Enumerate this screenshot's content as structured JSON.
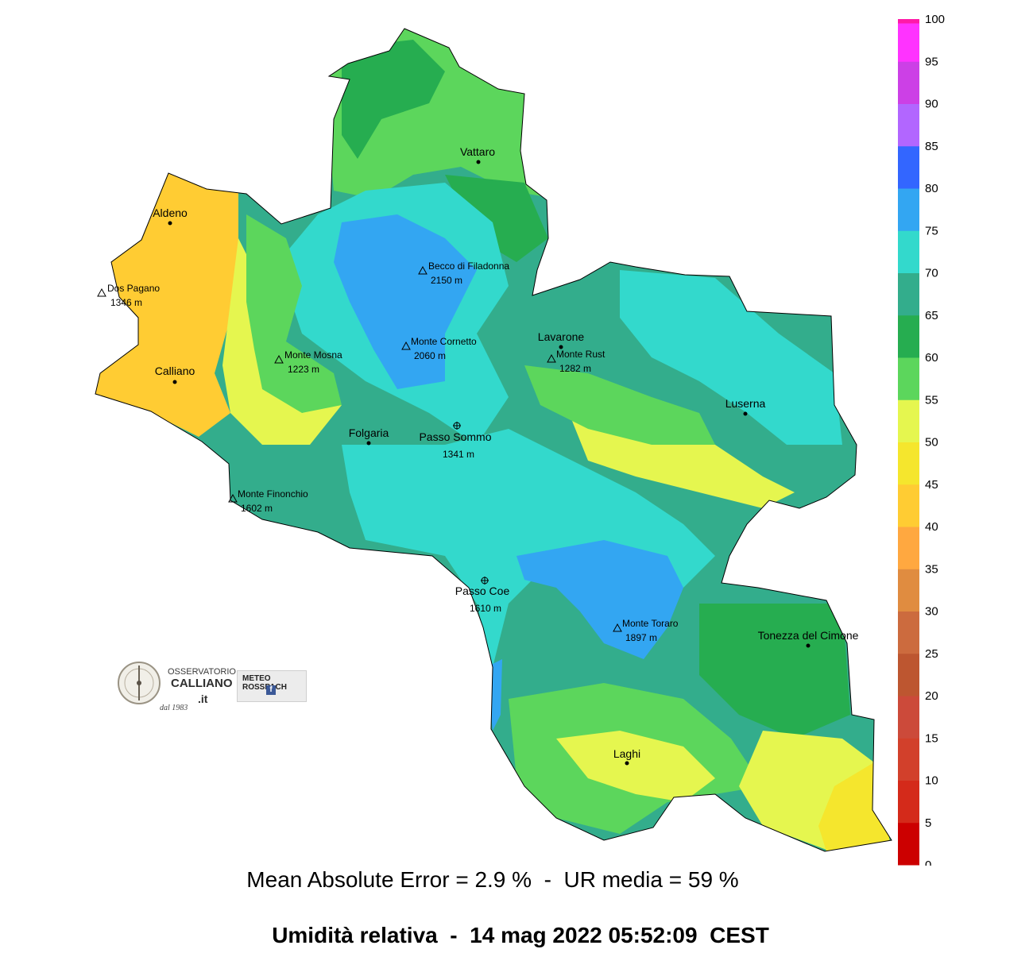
{
  "stats": {
    "mae_label": "Mean Absolute Error",
    "mae_value": "2.9 %",
    "mean_label": "UR media",
    "mean_value": "59 %",
    "text": "Mean Absolute Error = 2.9 %  -  UR media = 59 %"
  },
  "title": {
    "variable": "Umidità relativa",
    "datetime": "14 mag 2022 05:52:09",
    "timezone": "CEST",
    "text": "Umidità relativa  -  14 mag 2022 05:52:09  CEST"
  },
  "legend": {
    "unit_hint": "%",
    "bands": [
      {
        "from": 0,
        "to": 5,
        "color": "#cc0000"
      },
      {
        "from": 5,
        "to": 10,
        "color": "#d42a1a"
      },
      {
        "from": 10,
        "to": 15,
        "color": "#d2402b"
      },
      {
        "from": 15,
        "to": 20,
        "color": "#cc4a3a"
      },
      {
        "from": 20,
        "to": 25,
        "color": "#bd5630"
      },
      {
        "from": 25,
        "to": 30,
        "color": "#cc6b3e"
      },
      {
        "from": 30,
        "to": 35,
        "color": "#e08c40"
      },
      {
        "from": 35,
        "to": 40,
        "color": "#ffa840"
      },
      {
        "from": 40,
        "to": 45,
        "color": "#ffcc33"
      },
      {
        "from": 45,
        "to": 50,
        "color": "#f5e62d"
      },
      {
        "from": 50,
        "to": 55,
        "color": "#e5f64f"
      },
      {
        "from": 55,
        "to": 60,
        "color": "#5cd65c"
      },
      {
        "from": 60,
        "to": 65,
        "color": "#26ad50"
      },
      {
        "from": 65,
        "to": 70,
        "color": "#33ad8c"
      },
      {
        "from": 70,
        "to": 75,
        "color": "#33d9cc"
      },
      {
        "from": 75,
        "to": 80,
        "color": "#33a6f2"
      },
      {
        "from": 80,
        "to": 85,
        "color": "#3366ff"
      },
      {
        "from": 85,
        "to": 90,
        "color": "#b266ff"
      },
      {
        "from": 90,
        "to": 95,
        "color": "#cc40e6"
      },
      {
        "from": 95,
        "to": 100,
        "color": "#ff33ff"
      },
      {
        "from": 100,
        "to": 100,
        "color": "#ff1aa8"
      }
    ],
    "ticks": [
      "0",
      "5",
      "10",
      "15",
      "20",
      "25",
      "30",
      "35",
      "40",
      "45",
      "50",
      "55",
      "60",
      "65",
      "70",
      "75",
      "80",
      "85",
      "90",
      "95",
      "100"
    ]
  },
  "places": [
    {
      "id": "aldeno",
      "name": "Aldeno"
    },
    {
      "id": "calliano",
      "name": "Calliano"
    },
    {
      "id": "vattaro",
      "name": "Vattaro"
    },
    {
      "id": "folgaria",
      "name": "Folgaria"
    },
    {
      "id": "lavarone",
      "name": "Lavarone"
    },
    {
      "id": "luserna",
      "name": "Luserna"
    },
    {
      "id": "tonezza",
      "name": "Tonezza del Cimone"
    },
    {
      "id": "laghi",
      "name": "Laghi"
    }
  ],
  "peaks": [
    {
      "id": "dos-pagano",
      "name": "Dos Pagano",
      "elev": "1346 m"
    },
    {
      "id": "becco",
      "name": "Becco di Filadonna",
      "elev": "2150 m"
    },
    {
      "id": "cornetto",
      "name": "Monte Cornetto",
      "elev": "2060 m"
    },
    {
      "id": "mosna",
      "name": "Monte Mosna",
      "elev": "1223 m"
    },
    {
      "id": "rust",
      "name": "Monte Rust",
      "elev": "1282 m"
    },
    {
      "id": "finonchio",
      "name": "Monte Finonchio",
      "elev": "1602 m"
    },
    {
      "id": "toraro",
      "name": "Monte Toraro",
      "elev": "1897 m"
    }
  ],
  "passes": [
    {
      "id": "sommo",
      "name": "Passo Sommo",
      "elev": "1341 m"
    },
    {
      "id": "coe",
      "name": "Passo Coe",
      "elev": "1610 m"
    }
  ],
  "logos": {
    "osservatorio": {
      "line1": "OSSERVATORIO",
      "line2": "CALLIANO",
      "line3": ".it",
      "since": "dal 1983"
    },
    "rosspach": {
      "text": "METEO ROSSPACH",
      "badge": "f"
    }
  }
}
